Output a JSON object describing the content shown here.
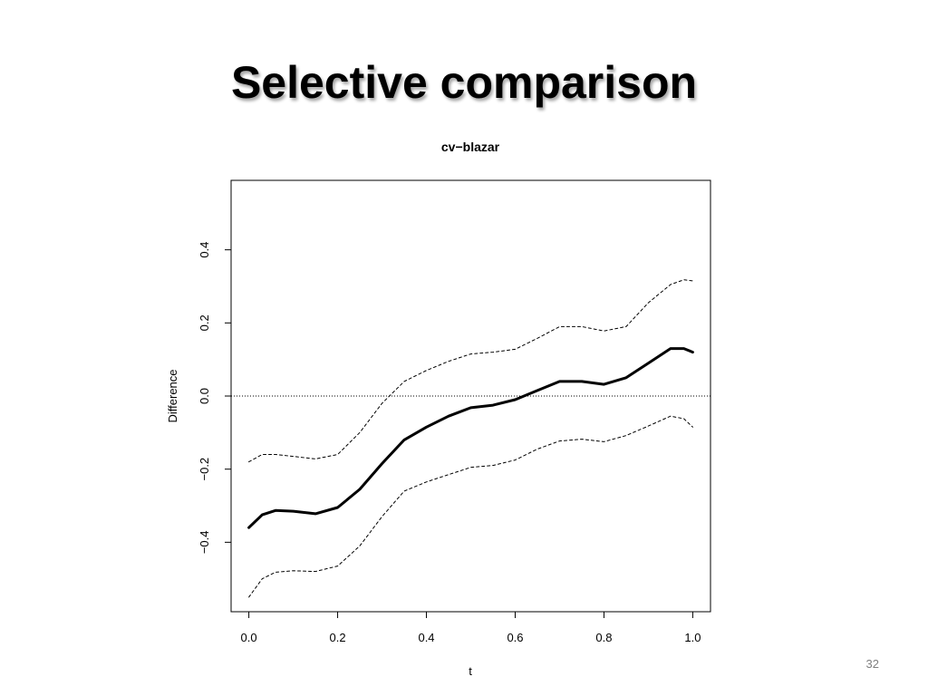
{
  "slide": {
    "title": "Selective comparison",
    "page_number": "32"
  },
  "chart_data": {
    "type": "line",
    "title": "cv−blazar",
    "xlabel": "t",
    "ylabel": "Difference",
    "xlim": [
      -0.04,
      1.04
    ],
    "ylim": [
      -0.59,
      0.59
    ],
    "x_ticks": [
      0.0,
      0.2,
      0.4,
      0.6,
      0.8,
      1.0
    ],
    "x_tick_labels": [
      "0.0",
      "0.2",
      "0.4",
      "0.6",
      "0.8",
      "1.0"
    ],
    "y_ticks": [
      -0.4,
      -0.2,
      0.0,
      0.2,
      0.4
    ],
    "y_tick_labels": [
      "−0.4",
      "−0.2",
      "0.0",
      "0.2",
      "0.4"
    ],
    "grid": false,
    "reference_line": {
      "y": 0.0,
      "style": "dotted"
    },
    "series": [
      {
        "style": "solid",
        "x": [
          0.0,
          0.03,
          0.06,
          0.1,
          0.15,
          0.2,
          0.25,
          0.3,
          0.35,
          0.4,
          0.45,
          0.5,
          0.55,
          0.6,
          0.65,
          0.7,
          0.75,
          0.8,
          0.85,
          0.9,
          0.95,
          0.98,
          1.0
        ],
        "values": [
          -0.36,
          -0.325,
          -0.313,
          -0.315,
          -0.322,
          -0.305,
          -0.255,
          -0.185,
          -0.12,
          -0.085,
          -0.055,
          -0.032,
          -0.025,
          -0.01,
          0.015,
          0.04,
          0.04,
          0.032,
          0.05,
          0.09,
          0.13,
          0.13,
          0.12
        ]
      },
      {
        "style": "dashed",
        "x": [
          0.0,
          0.03,
          0.06,
          0.1,
          0.15,
          0.2,
          0.25,
          0.3,
          0.35,
          0.4,
          0.45,
          0.5,
          0.55,
          0.6,
          0.65,
          0.7,
          0.75,
          0.8,
          0.85,
          0.9,
          0.95,
          0.98,
          1.0
        ],
        "values": [
          -0.18,
          -0.16,
          -0.16,
          -0.165,
          -0.172,
          -0.16,
          -0.1,
          -0.02,
          0.04,
          0.07,
          0.095,
          0.115,
          0.12,
          0.128,
          0.158,
          0.19,
          0.19,
          0.178,
          0.19,
          0.255,
          0.305,
          0.318,
          0.315
        ]
      },
      {
        "style": "dashed",
        "x": [
          0.0,
          0.03,
          0.06,
          0.1,
          0.15,
          0.2,
          0.25,
          0.3,
          0.35,
          0.4,
          0.45,
          0.5,
          0.55,
          0.6,
          0.65,
          0.7,
          0.75,
          0.8,
          0.85,
          0.9,
          0.95,
          0.98,
          1.0
        ],
        "values": [
          -0.55,
          -0.5,
          -0.482,
          -0.478,
          -0.48,
          -0.465,
          -0.41,
          -0.33,
          -0.26,
          -0.235,
          -0.215,
          -0.195,
          -0.19,
          -0.175,
          -0.145,
          -0.123,
          -0.118,
          -0.125,
          -0.108,
          -0.082,
          -0.055,
          -0.062,
          -0.085
        ]
      }
    ]
  }
}
